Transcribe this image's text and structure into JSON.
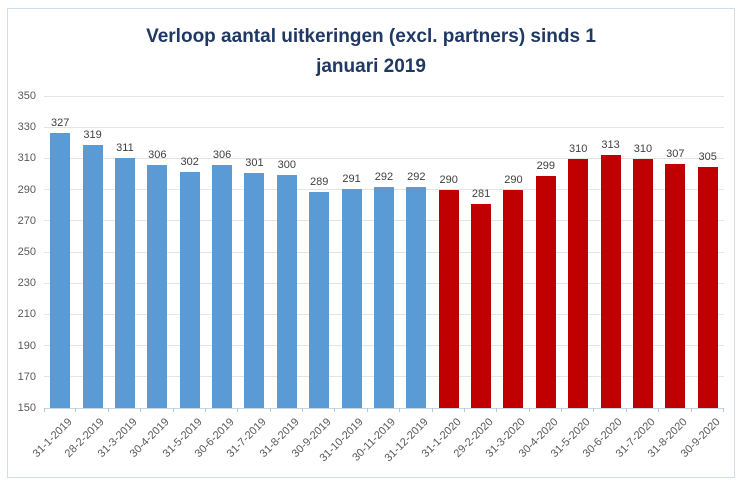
{
  "title": {
    "line1": "Verloop aantal uitkeringen (excl. partners) sinds 1",
    "line2": "januari 2019",
    "full": "Verloop aantal uitkeringen (excl. partners) sinds 1 januari 2019"
  },
  "chart_data": {
    "type": "bar",
    "title": "Verloop aantal uitkeringen (excl. partners) sinds 1 januari 2019",
    "categories": [
      "31-1-2019",
      "28-2-2019",
      "31-3-2019",
      "30-4-2019",
      "31-5-2019",
      "30-6-2019",
      "31-7-2019",
      "31-8-2019",
      "30-9-2019",
      "31-10-2019",
      "30-11-2019",
      "31-12-2019",
      "31-1-2020",
      "29-2-2020",
      "31-3-2020",
      "30-4-2020",
      "31-5-2020",
      "30-6-2020",
      "31-7-2020",
      "31-8-2020",
      "30-9-2020"
    ],
    "series": [
      {
        "name": "Aantal uitkeringen (excl. partners)",
        "values": [
          327,
          319,
          311,
          306,
          302,
          306,
          301,
          300,
          289,
          291,
          292,
          292,
          290,
          281,
          290,
          299,
          310,
          313,
          310,
          307,
          305
        ]
      }
    ],
    "xlabel": "",
    "ylabel": "",
    "ylim": [
      150,
      350
    ],
    "yticks": [
      150,
      170,
      190,
      210,
      230,
      250,
      270,
      290,
      310,
      330,
      350
    ],
    "grid": "horizontal",
    "legend": "none",
    "data_labels": true,
    "colors_by_year": {
      "2019": "#5B9BD5",
      "2020": "#C00000"
    }
  },
  "style": {
    "title_color": "#1F3864",
    "value_label_color": "#404040",
    "axis_label_color": "#595959",
    "gridline_color": "#E4E4E4",
    "bar_blue": "#5B9BD5",
    "bar_red": "#C00000"
  }
}
